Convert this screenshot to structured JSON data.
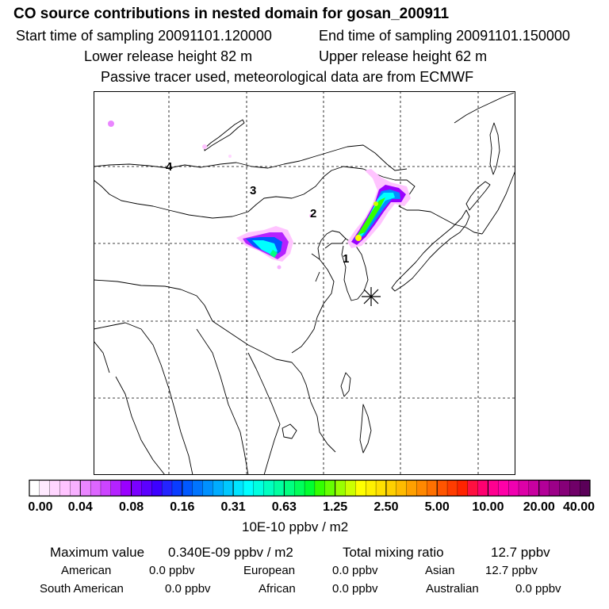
{
  "header": {
    "title": "CO  source contributions in nested domain for gosan_200911",
    "start_sampling": "Start time of sampling 20091101.120000",
    "end_sampling": "End time of sampling 20091101.150000",
    "lower_release": "Lower release height   82 m",
    "upper_release": "Upper release height   62 m",
    "tracer_note": "Passive tracer used, meteorological data are from ECMWF"
  },
  "map": {
    "region_labels": [
      "1",
      "2",
      "3",
      "4"
    ],
    "receptor_marker": "star-icon",
    "colors": {
      "coast": "#000000",
      "grid": "#000000"
    }
  },
  "colorbar": {
    "tick_labels": [
      "0.00",
      "0.04",
      "0.08",
      "0.16",
      "0.31",
      "0.63",
      "1.25",
      "2.50",
      "5.00",
      "10.00",
      "20.00",
      "40.00"
    ],
    "colors": [
      "#ffffff",
      "#ffeaff",
      "#ffd6ff",
      "#ffc4ff",
      "#f7b0ff",
      "#ea86ff",
      "#dd66ff",
      "#cc44ff",
      "#b522ff",
      "#9a00ff",
      "#7a00ff",
      "#5c00ff",
      "#3d00ff",
      "#2424ff",
      "#0a3cff",
      "#0058ff",
      "#0074ff",
      "#0090ff",
      "#00acff",
      "#00c8ff",
      "#00e4ff",
      "#00ffff",
      "#00ffe0",
      "#00ffc0",
      "#00ffa0",
      "#00ff80",
      "#00ff5a",
      "#00ff30",
      "#33ff00",
      "#66ff00",
      "#99ff00",
      "#ccff00",
      "#ffff00",
      "#fff000",
      "#ffe000",
      "#ffd000",
      "#ffbb00",
      "#ffa000",
      "#ff8800",
      "#ff7000",
      "#ff5500",
      "#ff3c00",
      "#ff2400",
      "#ff1040",
      "#ff0070",
      "#ff0090",
      "#ff00a8",
      "#f000b0",
      "#dd00a8",
      "#c800a0",
      "#b30098",
      "#9c0088",
      "#860078",
      "#700068",
      "#5a0058"
    ],
    "unit": "10E-10 ppbv / m2"
  },
  "stats": {
    "max_label": "Maximum value",
    "max_value": "0.340E-09 ppbv / m2",
    "total_label": "Total mixing ratio",
    "total_value": "12.7 ppbv",
    "regions": [
      {
        "name": "American",
        "value": "0.0 ppbv"
      },
      {
        "name": "European",
        "value": "0.0 ppbv"
      },
      {
        "name": "Asian",
        "value": "12.7 ppbv"
      },
      {
        "name": "South American",
        "value": "0.0 ppbv"
      },
      {
        "name": "African",
        "value": "0.0 ppbv"
      },
      {
        "name": "Australian",
        "value": "0.0 ppbv"
      }
    ]
  }
}
